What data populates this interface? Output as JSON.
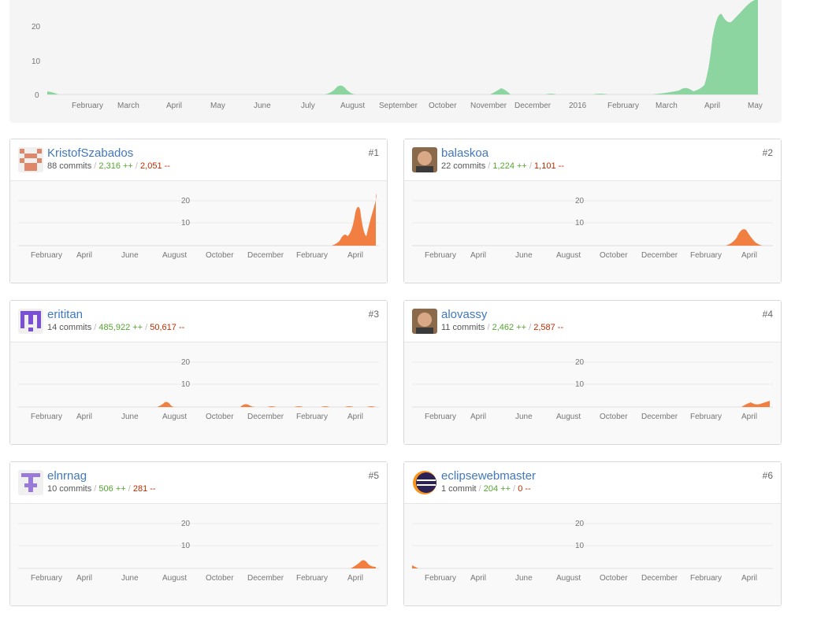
{
  "overview": {
    "y_ticks": [
      "0",
      "10",
      "20"
    ],
    "x_labels": [
      "February",
      "March",
      "April",
      "May",
      "June",
      "July",
      "August",
      "September",
      "October",
      "November",
      "December",
      "2016",
      "February",
      "March",
      "April",
      "May"
    ],
    "fill_color": "#8cd4a0"
  },
  "contributor_chart": {
    "y_ticks": [
      "10",
      "20"
    ],
    "x_labels": [
      "February",
      "April",
      "June",
      "August",
      "October",
      "December",
      "February",
      "April"
    ],
    "fill_color": "#f17f42"
  },
  "contributors": [
    {
      "username": "KristofSzabados",
      "rank": "#1",
      "commits": "88 commits",
      "additions": "2,316 ++",
      "deletions": "2,051 --",
      "avatar": "identicon-orange"
    },
    {
      "username": "balaskoa",
      "rank": "#2",
      "commits": "22 commits",
      "additions": "1,224 ++",
      "deletions": "1,101 --",
      "avatar": "photo-avatar"
    },
    {
      "username": "erititan",
      "rank": "#3",
      "commits": "14 commits",
      "additions": "485,922 ++",
      "deletions": "50,617 --",
      "avatar": "identicon-purple"
    },
    {
      "username": "alovassy",
      "rank": "#4",
      "commits": "11 commits",
      "additions": "2,462 ++",
      "deletions": "2,587 --",
      "avatar": "photo-avatar"
    },
    {
      "username": "elnrnag",
      "rank": "#5",
      "commits": "10 commits",
      "additions": "506 ++",
      "deletions": "281 --",
      "avatar": "identicon-violet"
    },
    {
      "username": "eclipsewebmaster",
      "rank": "#6",
      "commits": "1 commit",
      "additions": "204 ++",
      "deletions": "0 --",
      "avatar": "eclipse-logo"
    }
  ]
}
